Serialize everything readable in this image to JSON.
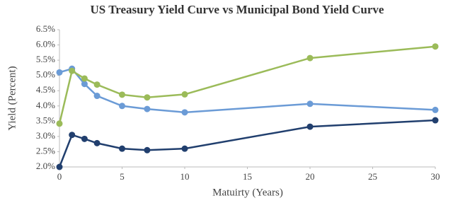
{
  "chart_data": {
    "type": "line",
    "title": "US Treasury Yield  Curve vs Municipal Bond Yield  Curve",
    "x_label": "Matuirty (Years)",
    "y_label": "Yield (Percent)",
    "x": [
      0,
      1,
      2,
      3,
      5,
      7,
      10,
      20,
      30
    ],
    "series": [
      {
        "color": "#6b9bd6",
        "values": [
          5.1,
          5.22,
          4.72,
          4.33,
          4.0,
          3.9,
          3.79,
          4.07,
          3.87
        ]
      },
      {
        "color": "#9bbb59",
        "values": [
          3.42,
          5.15,
          4.9,
          4.7,
          4.37,
          4.28,
          4.38,
          5.57,
          5.95
        ]
      },
      {
        "color": "#213f6e",
        "values": [
          2.0,
          3.05,
          2.92,
          2.78,
          2.6,
          2.55,
          2.6,
          3.32,
          3.53
        ]
      }
    ],
    "xlim": [
      0,
      30
    ],
    "xticks": [
      0,
      5,
      10,
      15,
      20,
      25,
      30
    ],
    "ylim": [
      2,
      6.5
    ],
    "yticks": [
      {
        "value": 2,
        "label": "2.0%"
      },
      {
        "value": 2.5,
        "label": "2.5%"
      },
      {
        "value": 3,
        "label": "3.0%"
      },
      {
        "value": 3.5,
        "label": "3.5%"
      },
      {
        "value": 4,
        "label": "4.0%"
      },
      {
        "value": 4.5,
        "label": "4.5%"
      },
      {
        "value": 5,
        "label": "5.0%"
      },
      {
        "value": 5.5,
        "label": "5.5%"
      },
      {
        "value": 6,
        "label": "6.0%"
      },
      {
        "value": 6.5,
        "label": "6.5%"
      }
    ]
  }
}
